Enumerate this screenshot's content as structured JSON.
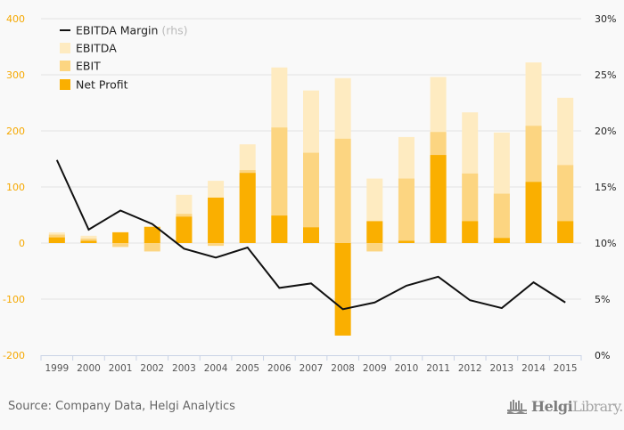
{
  "chart_data": {
    "type": "bar",
    "subtype": "overlapping bars with line on secondary axis",
    "title": "",
    "categories": [
      "1999",
      "2000",
      "2001",
      "2002",
      "2003",
      "2004",
      "2005",
      "2006",
      "2007",
      "2008",
      "2009",
      "2010",
      "2011",
      "2012",
      "2013",
      "2014",
      "2015"
    ],
    "series": [
      {
        "name": "EBITDA",
        "type": "bar",
        "axis": "left",
        "color": "#feebc1",
        "values": [
          19,
          13,
          20,
          -2,
          86,
          111,
          176,
          313,
          272,
          294,
          115,
          189,
          296,
          233,
          197,
          322,
          259
        ]
      },
      {
        "name": "EBIT",
        "type": "bar",
        "axis": "left",
        "color": "#fcd581",
        "values": [
          15,
          8,
          -7,
          -15,
          52,
          -5,
          130,
          206,
          161,
          186,
          -15,
          115,
          198,
          124,
          88,
          209,
          139
        ]
      },
      {
        "name": "Net Profit",
        "type": "bar",
        "axis": "left",
        "color": "#faaf00",
        "values": [
          10,
          4,
          19,
          29,
          47,
          81,
          125,
          49,
          28,
          -165,
          39,
          4,
          157,
          39,
          9,
          109,
          39
        ]
      },
      {
        "name": "EBITDA Margin",
        "name_suffix": "(rhs)",
        "type": "line",
        "axis": "right",
        "color": "#111111",
        "values": [
          17.4,
          11.2,
          12.9,
          11.7,
          9.5,
          8.7,
          9.6,
          6.0,
          6.4,
          4.1,
          4.7,
          6.2,
          7.0,
          4.9,
          4.2,
          6.5,
          4.7
        ]
      }
    ],
    "y_left": {
      "ylim": [
        -200,
        400
      ],
      "ticks": [
        "400",
        "300",
        "200",
        "100",
        "0",
        "-100",
        "-200"
      ],
      "tick_values": [
        400,
        300,
        200,
        100,
        0,
        -100,
        -200
      ],
      "label": ""
    },
    "y_right": {
      "ylim": [
        0,
        30
      ],
      "ticks": [
        "30%",
        "25%",
        "20%",
        "15%",
        "10%",
        "5%",
        "0%"
      ],
      "tick_values": [
        30,
        25,
        20,
        15,
        10,
        5,
        0
      ],
      "label": ""
    },
    "xlabel": "",
    "grid": true,
    "legend_position": "top-left",
    "legend": [
      {
        "label": "EBITDA Margin",
        "suffix": "(rhs)",
        "kind": "line",
        "color": "#111111"
      },
      {
        "label": "EBITDA",
        "kind": "box",
        "color": "#feebc1"
      },
      {
        "label": "EBIT",
        "kind": "box",
        "color": "#fcd581"
      },
      {
        "label": "Net Profit",
        "kind": "box",
        "color": "#faaf00"
      }
    ]
  },
  "footer": {
    "source": "Source: Company Data, Helgi Analytics",
    "logo_bold": "Helgi",
    "logo_light": "Library."
  }
}
